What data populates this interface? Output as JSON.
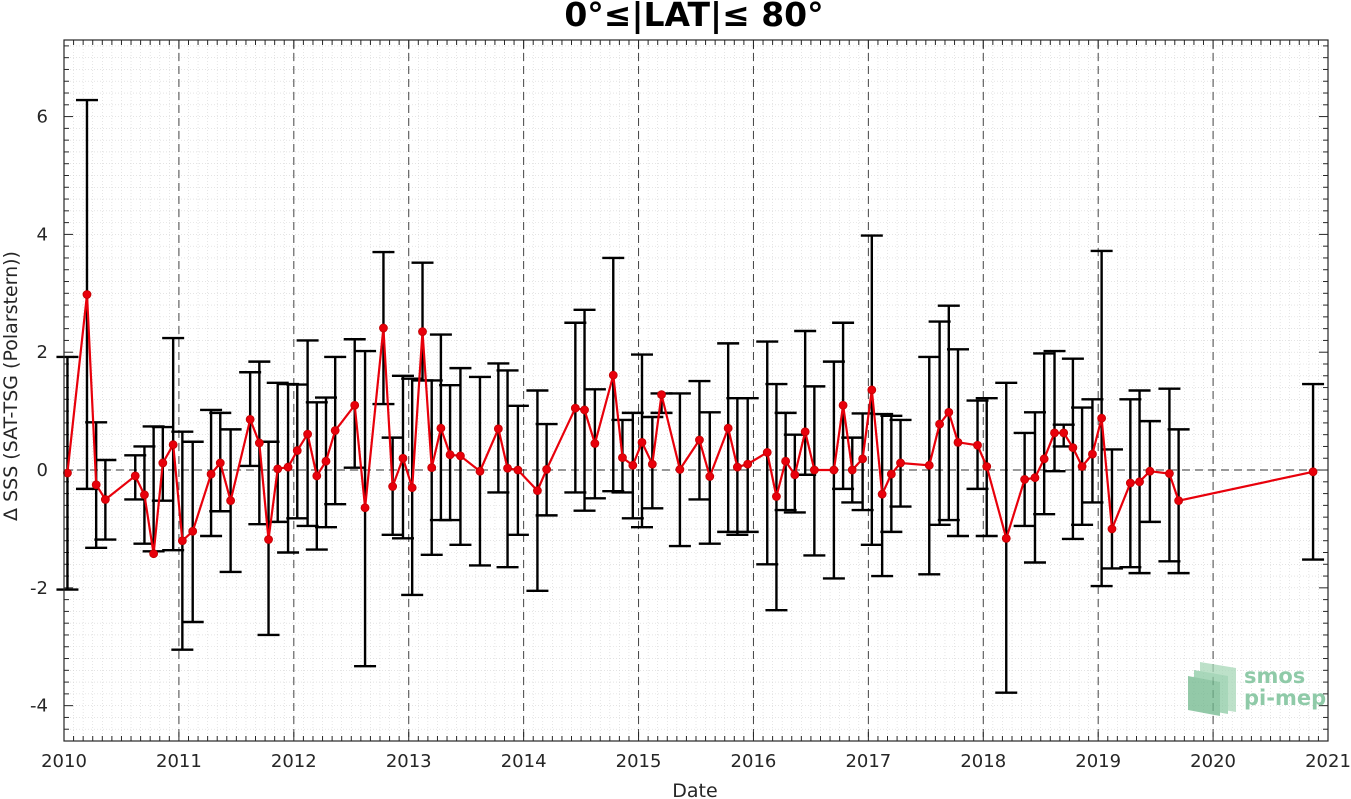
{
  "chart_data": {
    "type": "line",
    "title": "0°≤|LAT|≤ 80°",
    "xlabel": "Date",
    "ylabel": "Δ SSS (SAT-TSG (Polarstern))",
    "xlim": [
      2010,
      2021
    ],
    "ylim": [
      -4.6,
      7.3
    ],
    "xticks": [
      2010,
      2011,
      2012,
      2013,
      2014,
      2015,
      2016,
      2017,
      2018,
      2019,
      2020,
      2021
    ],
    "xtick_labels": [
      "2010",
      "2011",
      "2012",
      "2013",
      "2014",
      "2015",
      "2016",
      "2017",
      "2018",
      "2019",
      "2020",
      "2021"
    ],
    "yticks": [
      -4,
      -2,
      0,
      2,
      4,
      6
    ],
    "ytick_labels": [
      "-4",
      "-2",
      "0",
      "2",
      "4",
      "6"
    ],
    "grid": "minor dotted",
    "year_separators": "dashed vertical lines at each year",
    "zero_line": "dashed horizontal at 0",
    "line_color": "#e8000b",
    "errorbar_color": "#000000",
    "series": [
      {
        "x": [
          2010.03,
          2010.2,
          2010.28,
          2010.36,
          2010.62,
          2010.7,
          2010.78,
          2010.86,
          2010.95,
          2011.03,
          2011.12,
          2011.28,
          2011.36,
          2011.45,
          2011.62,
          2011.7,
          2011.78,
          2011.86,
          2011.95,
          2012.03,
          2012.12,
          2012.2,
          2012.28,
          2012.36,
          2012.53,
          2012.62,
          2012.78,
          2012.86,
          2012.95,
          2013.03,
          2013.12,
          2013.2,
          2013.28,
          2013.36,
          2013.45,
          2013.62,
          2013.78,
          2013.86,
          2013.95,
          2014.12,
          2014.2,
          2014.45,
          2014.53,
          2014.62,
          2014.78,
          2014.86,
          2014.95,
          2015.03,
          2015.12,
          2015.2,
          2015.36,
          2015.53,
          2015.62,
          2015.78,
          2015.86,
          2015.95,
          2016.12,
          2016.2,
          2016.28,
          2016.36,
          2016.45,
          2016.53,
          2016.7,
          2016.78,
          2016.86,
          2016.95,
          2017.03,
          2017.12,
          2017.2,
          2017.28,
          2017.53,
          2017.62,
          2017.7,
          2017.78,
          2017.95,
          2018.03,
          2018.2,
          2018.36,
          2018.45,
          2018.53,
          2018.62,
          2018.7,
          2018.78,
          2018.86,
          2018.95,
          2019.03,
          2019.12,
          2019.28,
          2019.36,
          2019.45,
          2019.62,
          2019.7,
          2020.87
        ],
        "y": [
          -0.05,
          2.98,
          -0.25,
          -0.5,
          -0.1,
          -0.42,
          -1.42,
          0.12,
          0.43,
          -1.2,
          -1.04,
          -0.07,
          0.12,
          -0.52,
          0.86,
          0.46,
          -1.18,
          0.02,
          0.05,
          0.33,
          0.61,
          -0.1,
          0.15,
          0.67,
          1.1,
          -0.64,
          2.41,
          -0.28,
          0.2,
          -0.3,
          2.35,
          0.04,
          0.71,
          0.26,
          0.24,
          -0.02,
          0.7,
          0.03,
          0.0,
          -0.35,
          0.01,
          1.05,
          1.02,
          0.45,
          1.61,
          0.21,
          0.08,
          0.47,
          0.1,
          1.28,
          0.01,
          0.51,
          -0.11,
          0.71,
          0.05,
          0.1,
          0.3,
          -0.45,
          0.15,
          -0.08,
          0.65,
          0.0,
          0.0,
          1.1,
          0.0,
          0.19,
          1.36,
          -0.41,
          -0.07,
          0.12,
          0.08,
          0.78,
          0.98,
          0.47,
          0.42,
          0.06,
          -1.16,
          -0.16,
          -0.13,
          0.19,
          0.63,
          0.63,
          0.38,
          0.06,
          0.27,
          0.88,
          -1.0,
          -0.22,
          -0.2,
          -0.02,
          -0.06,
          -0.52,
          -0.03
        ],
        "err_low": [
          -2.03,
          -0.32,
          -1.32,
          -1.18,
          -0.5,
          -1.25,
          -1.38,
          -0.52,
          -1.36,
          -3.05,
          -2.58,
          -1.12,
          -0.7,
          -1.73,
          0.07,
          -0.92,
          -2.8,
          -0.88,
          -1.4,
          -0.82,
          -0.95,
          -1.35,
          -0.97,
          -0.58,
          0.04,
          -3.33,
          1.12,
          -1.1,
          -1.16,
          -2.12,
          1.52,
          -1.44,
          -0.85,
          -0.85,
          -1.27,
          -1.62,
          -0.38,
          -1.65,
          -1.1,
          -2.05,
          -0.77,
          -0.38,
          -0.69,
          -0.48,
          -0.36,
          -0.38,
          -0.82,
          -0.97,
          -0.65,
          0.97,
          -1.29,
          -0.5,
          -1.25,
          -1.05,
          -1.1,
          -1.05,
          -1.6,
          -2.38,
          -0.68,
          -0.72,
          -0.08,
          -1.45,
          -1.84,
          -0.32,
          -0.55,
          -0.68,
          -1.27,
          -1.8,
          -1.05,
          -0.62,
          -1.77,
          -0.93,
          -0.85,
          -1.12,
          -0.32,
          -1.12,
          -3.78,
          -0.95,
          -1.57,
          -0.75,
          -0.02,
          0.4,
          -1.17,
          -0.93,
          -0.55,
          -1.97,
          -1.67,
          -1.65,
          -1.75,
          -0.88,
          -1.55,
          -1.75,
          -1.52
        ],
        "err_high": [
          1.92,
          6.28,
          0.81,
          0.17,
          0.25,
          0.4,
          0.74,
          0.73,
          2.24,
          0.65,
          0.48,
          1.02,
          0.97,
          0.69,
          1.66,
          1.84,
          0.48,
          1.48,
          1.46,
          1.45,
          2.2,
          1.15,
          1.23,
          1.92,
          2.22,
          2.02,
          3.7,
          0.55,
          1.6,
          1.55,
          3.52,
          1.52,
          2.3,
          1.44,
          1.73,
          1.58,
          1.81,
          1.69,
          1.09,
          1.35,
          0.78,
          2.5,
          2.72,
          1.37,
          3.6,
          0.85,
          0.97,
          1.96,
          0.9,
          1.3,
          1.3,
          1.51,
          0.98,
          2.15,
          1.22,
          1.22,
          2.18,
          1.46,
          0.97,
          0.6,
          2.36,
          1.42,
          1.84,
          2.5,
          0.55,
          0.96,
          3.98,
          0.95,
          0.92,
          0.85,
          1.92,
          2.52,
          2.79,
          2.05,
          1.18,
          1.22,
          1.48,
          0.63,
          0.98,
          1.98,
          2.02,
          0.77,
          1.89,
          1.06,
          1.2,
          3.72,
          0.35,
          1.2,
          1.35,
          0.83,
          1.38,
          0.69,
          1.46
        ]
      }
    ]
  },
  "logo": {
    "line1": "smos",
    "line2": "pi-mep"
  }
}
